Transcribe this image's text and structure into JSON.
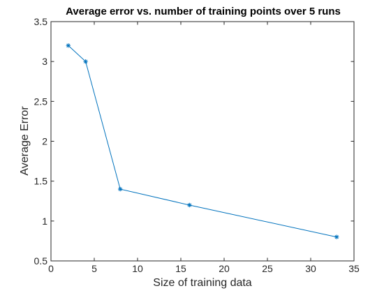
{
  "chart_data": {
    "type": "line",
    "title": "Average error vs. number of training points over 5 runs",
    "xlabel": "Size of training data",
    "ylabel": "Average Error",
    "xlim": [
      0,
      35
    ],
    "ylim": [
      0.5,
      3.5
    ],
    "xticks": [
      "0",
      "5",
      "10",
      "15",
      "20",
      "25",
      "30",
      "35"
    ],
    "yticks": [
      "0.5",
      "1",
      "1.5",
      "2",
      "2.5",
      "3",
      "3.5"
    ],
    "grid": false,
    "marker": "asterisk",
    "series": [
      {
        "color": "#0072BD",
        "x": [
          2,
          4,
          8,
          16,
          33
        ],
        "y": [
          3.2,
          3.0,
          1.4,
          1.2,
          0.8
        ]
      }
    ]
  }
}
